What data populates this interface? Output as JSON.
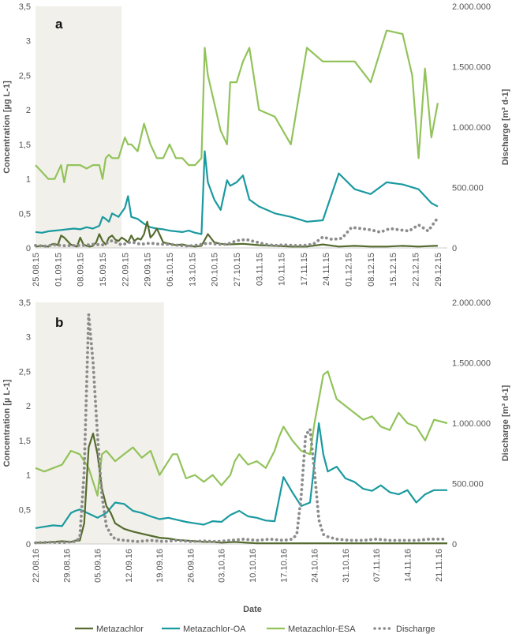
{
  "colors": {
    "metazachlor": "#556b2f",
    "oa": "#1a9aa0",
    "esa": "#92c35a",
    "discharge": "#8c8c8c",
    "shade": "#f2f0ea",
    "axis": "#cccccc"
  },
  "xlabel": "Date",
  "legend": [
    "Metazachlor",
    "Metazachlor-OA",
    "Metazachlor-ESA",
    "Discharge"
  ],
  "chart_data": [
    {
      "type": "line",
      "panel_label": "a",
      "ylabel": "Concentration [µg L-1]",
      "y2label": "Discharge [m³ d-1]",
      "ylim": [
        0,
        3.5
      ],
      "y2lim": [
        0,
        2000000
      ],
      "yticks": [
        "0",
        "0,5",
        "1",
        "1,5",
        "2",
        "2,5",
        "3",
        "3,5"
      ],
      "y2ticks": [
        "0",
        "500.000",
        "1.000.000",
        "1.500.000",
        "2.000.000"
      ],
      "x_start": "2015-08-25",
      "x_end": "2016-01-01",
      "x_tick_dates": [
        "2015-08-25",
        "2015-09-01",
        "2015-09-08",
        "2015-09-15",
        "2015-09-22",
        "2015-09-29",
        "2015-10-06",
        "2015-10-13",
        "2015-10-20",
        "2015-10-27",
        "2015-11-03",
        "2015-11-10",
        "2015-11-17",
        "2015-11-24",
        "2015-12-01",
        "2015-12-08",
        "2015-12-15",
        "2015-12-22",
        "2015-12-29"
      ],
      "x_tick_labels": [
        "25.08.15",
        "01.09.15",
        "08.09.15",
        "15.09.15",
        "22.09.15",
        "29.09.15",
        "06.10.15",
        "13.10.15",
        "20.10.15",
        "27.10.15",
        "03.11.15",
        "10.11.15",
        "17.11.15",
        "24.11.15",
        "01.12.15",
        "08.12.15",
        "15.12.15",
        "22.12.15",
        "29.12.15"
      ],
      "shaded_period": [
        "2015-08-25",
        "2015-09-21"
      ],
      "series": [
        {
          "name": "Metazachlor",
          "key": "metazachlor",
          "axis": "left",
          "x": [
            0,
            2,
            4,
            5,
            6,
            7,
            8,
            9,
            10,
            11,
            12,
            13,
            14,
            15,
            16,
            17,
            18,
            19,
            20,
            21,
            22,
            23,
            24,
            25,
            26,
            27,
            28,
            29,
            30,
            31,
            32,
            33,
            34,
            35,
            36,
            37,
            38,
            40,
            42,
            44,
            46,
            48,
            50,
            52,
            54,
            56,
            58,
            60,
            65,
            70,
            75,
            80,
            85,
            90,
            95,
            100,
            105,
            110,
            115,
            120,
            125,
            126
          ],
          "y": [
            0.02,
            0.03,
            0.02,
            0.05,
            0.06,
            0.04,
            0.18,
            0.15,
            0.1,
            0.05,
            0.03,
            0.02,
            0.15,
            0.05,
            0.03,
            0.02,
            0.03,
            0.08,
            0.2,
            0.1,
            0.05,
            0.15,
            0.18,
            0.12,
            0.1,
            0.15,
            0.12,
            0.08,
            0.18,
            0.1,
            0.14,
            0.12,
            0.2,
            0.38,
            0.15,
            0.2,
            0.28,
            0.08,
            0.06,
            0.04,
            0.05,
            0.03,
            0.02,
            0.03,
            0.2,
            0.08,
            0.06,
            0.05,
            0.06,
            0.04,
            0.03,
            0.02,
            0.02,
            0.05,
            0.02,
            0.03,
            0.02,
            0.02,
            0.03,
            0.02,
            0.03,
            0.03
          ]
        },
        {
          "name": "Metazachlor-OA",
          "key": "oa",
          "axis": "left",
          "x": [
            0,
            2,
            4,
            6,
            8,
            10,
            12,
            14,
            16,
            18,
            20,
            21,
            22,
            23,
            24,
            26,
            28,
            29,
            30,
            32,
            34,
            36,
            38,
            40,
            42,
            44,
            46,
            48,
            50,
            52,
            53,
            54,
            56,
            58,
            60,
            61,
            63,
            65,
            67,
            70,
            75,
            80,
            85,
            90,
            95,
            100,
            105,
            110,
            115,
            120,
            124,
            126
          ],
          "y": [
            0.23,
            0.22,
            0.24,
            0.25,
            0.26,
            0.27,
            0.28,
            0.27,
            0.3,
            0.28,
            0.32,
            0.45,
            0.42,
            0.38,
            0.5,
            0.45,
            0.58,
            0.75,
            0.45,
            0.42,
            0.35,
            0.3,
            0.28,
            0.27,
            0.25,
            0.24,
            0.23,
            0.25,
            0.22,
            0.2,
            1.4,
            0.95,
            0.7,
            0.55,
            0.98,
            0.9,
            0.95,
            1.05,
            0.7,
            0.6,
            0.5,
            0.45,
            0.38,
            0.4,
            1.08,
            0.85,
            0.78,
            0.95,
            0.92,
            0.85,
            0.65,
            0.6
          ]
        },
        {
          "name": "Metazachlor-ESA",
          "key": "esa",
          "axis": "left",
          "x": [
            0,
            2,
            4,
            6,
            8,
            9,
            10,
            12,
            14,
            16,
            18,
            20,
            21,
            22,
            23,
            24,
            26,
            28,
            29,
            30,
            32,
            34,
            36,
            38,
            40,
            42,
            44,
            46,
            48,
            50,
            52,
            53,
            54,
            56,
            58,
            60,
            61,
            63,
            65,
            67,
            70,
            75,
            80,
            85,
            90,
            95,
            100,
            105,
            110,
            115,
            118,
            120,
            122,
            124,
            126
          ],
          "y": [
            1.2,
            1.1,
            1.0,
            1.0,
            1.2,
            0.95,
            1.2,
            1.2,
            1.2,
            1.15,
            1.2,
            1.2,
            1.0,
            1.3,
            1.35,
            1.3,
            1.3,
            1.6,
            1.5,
            1.5,
            1.4,
            1.8,
            1.5,
            1.3,
            1.3,
            1.5,
            1.3,
            1.3,
            1.2,
            1.2,
            1.3,
            2.9,
            2.5,
            2.1,
            1.7,
            1.5,
            2.4,
            2.4,
            2.7,
            2.9,
            2.0,
            1.9,
            1.5,
            2.9,
            2.7,
            2.7,
            2.7,
            2.4,
            3.15,
            3.1,
            2.5,
            1.3,
            2.6,
            1.6,
            2.1
          ]
        },
        {
          "name": "Discharge",
          "key": "discharge",
          "axis": "right",
          "x": [
            0,
            3,
            6,
            9,
            12,
            15,
            18,
            21,
            24,
            27,
            30,
            33,
            36,
            39,
            42,
            45,
            48,
            51,
            54,
            57,
            60,
            63,
            66,
            69,
            72,
            75,
            78,
            81,
            84,
            87,
            90,
            93,
            96,
            99,
            102,
            105,
            108,
            111,
            114,
            117,
            120,
            123,
            126
          ],
          "y": [
            20000,
            15000,
            25000,
            18000,
            20000,
            20000,
            30000,
            25000,
            60000,
            25000,
            50000,
            30000,
            40000,
            30000,
            30000,
            20000,
            15000,
            25000,
            40000,
            30000,
            30000,
            60000,
            70000,
            50000,
            30000,
            20000,
            25000,
            20000,
            20000,
            30000,
            90000,
            70000,
            80000,
            170000,
            160000,
            150000,
            130000,
            160000,
            150000,
            140000,
            190000,
            140000,
            250000
          ]
        }
      ]
    },
    {
      "type": "line",
      "panel_label": "b",
      "ylabel": "Concentration [µ L-1]",
      "y2label": "Discharge [m³ d-1]",
      "ylim": [
        0,
        3.5
      ],
      "y2lim": [
        0,
        2000000
      ],
      "yticks": [
        "0",
        "0,5",
        "1",
        "1,5",
        "2",
        "2,5",
        "3",
        "3,5"
      ],
      "y2ticks": [
        "0",
        "500.000",
        "1.000.000",
        "1.500.000",
        "2.000.000"
      ],
      "x_start": "2016-08-22",
      "x_end": "2016-11-23",
      "x_tick_dates": [
        "2016-08-22",
        "2016-08-29",
        "2016-09-05",
        "2016-09-12",
        "2016-09-19",
        "2016-09-26",
        "2016-10-03",
        "2016-10-10",
        "2016-10-17",
        "2016-10-24",
        "2016-10-31",
        "2016-11-07",
        "2016-11-14",
        "2016-11-21"
      ],
      "x_tick_labels": [
        "22.08.16",
        "29.08.16",
        "05.09.16",
        "12.09.16",
        "19.09.16",
        "26.09.16",
        "03.10.16",
        "10.10.16",
        "17.10.16",
        "24.10.16",
        "31.10.16",
        "07.11.16",
        "14.11.16",
        "21.11.16"
      ],
      "shaded_period": [
        "2016-08-22",
        "2016-09-20"
      ],
      "series": [
        {
          "name": "Metazachlor",
          "key": "metazachlor",
          "axis": "left",
          "x": [
            0,
            2,
            4,
            6,
            8,
            9,
            10,
            11,
            12,
            13,
            14,
            15,
            16,
            17,
            18,
            20,
            22,
            24,
            26,
            28,
            30,
            32,
            34,
            36,
            38,
            40,
            42,
            45,
            50,
            55,
            60,
            65,
            70,
            75,
            80,
            85,
            90,
            93
          ],
          "y": [
            0.02,
            0.02,
            0.03,
            0.04,
            0.03,
            0.05,
            0.05,
            0.3,
            1.4,
            1.6,
            1.3,
            0.8,
            0.55,
            0.45,
            0.3,
            0.22,
            0.18,
            0.15,
            0.12,
            0.09,
            0.08,
            0.06,
            0.05,
            0.04,
            0.03,
            0.03,
            0.02,
            0.03,
            0.01,
            0.01,
            0.01,
            0.01,
            0.01,
            0.01,
            0.01,
            0.01,
            0.01,
            0.01
          ]
        },
        {
          "name": "Metazachlor-OA",
          "key": "oa",
          "axis": "left",
          "x": [
            0,
            2,
            4,
            6,
            8,
            9,
            10,
            12,
            14,
            16,
            18,
            20,
            22,
            24,
            26,
            28,
            30,
            32,
            34,
            36,
            38,
            40,
            42,
            44,
            46,
            48,
            50,
            52,
            54,
            55,
            56,
            58,
            60,
            62,
            64,
            65,
            66,
            68,
            70,
            72,
            74,
            76,
            78,
            80,
            82,
            84,
            86,
            88,
            90,
            93
          ],
          "y": [
            0.23,
            0.25,
            0.27,
            0.26,
            0.45,
            0.48,
            0.5,
            0.44,
            0.38,
            0.45,
            0.6,
            0.58,
            0.48,
            0.45,
            0.4,
            0.36,
            0.38,
            0.35,
            0.32,
            0.3,
            0.28,
            0.33,
            0.32,
            0.42,
            0.48,
            0.4,
            0.38,
            0.34,
            0.33,
            0.65,
            0.97,
            0.75,
            0.55,
            0.6,
            1.75,
            1.3,
            1.05,
            1.12,
            0.95,
            0.9,
            0.8,
            0.77,
            0.85,
            0.75,
            0.72,
            0.78,
            0.6,
            0.72,
            0.78,
            0.78
          ]
        },
        {
          "name": "Metazachlor-ESA",
          "key": "esa",
          "axis": "left",
          "x": [
            0,
            2,
            4,
            6,
            8,
            10,
            12,
            13,
            14,
            15,
            16,
            18,
            20,
            22,
            24,
            26,
            28,
            30,
            31,
            32,
            34,
            36,
            38,
            40,
            42,
            44,
            45,
            46,
            48,
            50,
            52,
            54,
            55,
            56,
            58,
            60,
            62,
            63,
            64,
            65,
            66,
            68,
            70,
            72,
            74,
            76,
            78,
            80,
            82,
            84,
            86,
            88,
            90,
            93
          ],
          "y": [
            1.1,
            1.05,
            1.1,
            1.15,
            1.35,
            1.3,
            1.1,
            0.9,
            0.7,
            1.3,
            1.35,
            1.2,
            1.3,
            1.4,
            1.25,
            1.35,
            1.0,
            1.2,
            1.3,
            1.3,
            0.95,
            1.0,
            0.9,
            1.0,
            0.85,
            1.0,
            1.2,
            1.3,
            1.15,
            1.2,
            1.1,
            1.35,
            1.55,
            1.7,
            1.5,
            1.35,
            1.3,
            1.75,
            2.1,
            2.45,
            2.5,
            2.1,
            2.0,
            1.9,
            1.8,
            1.85,
            1.7,
            1.65,
            1.9,
            1.75,
            1.7,
            1.5,
            1.8,
            1.75
          ]
        },
        {
          "name": "Discharge",
          "key": "discharge",
          "axis": "right",
          "x": [
            0,
            3,
            6,
            9,
            10,
            11,
            12,
            13,
            14,
            15,
            16,
            17,
            18,
            20,
            23,
            26,
            29,
            32,
            35,
            38,
            41,
            44,
            47,
            50,
            53,
            56,
            58,
            59,
            60,
            61,
            62,
            63,
            64,
            65,
            66,
            68,
            71,
            74,
            77,
            80,
            83,
            86,
            89,
            92,
            93
          ],
          "y": [
            10000,
            15000,
            12000,
            20000,
            50000,
            600000,
            1900000,
            1500000,
            900000,
            400000,
            150000,
            80000,
            40000,
            30000,
            20000,
            30000,
            20000,
            30000,
            20000,
            25000,
            20000,
            30000,
            40000,
            30000,
            40000,
            30000,
            40000,
            80000,
            400000,
            900000,
            950000,
            600000,
            200000,
            80000,
            60000,
            40000,
            30000,
            30000,
            40000,
            30000,
            30000,
            30000,
            40000,
            40000,
            40000
          ]
        }
      ]
    }
  ]
}
